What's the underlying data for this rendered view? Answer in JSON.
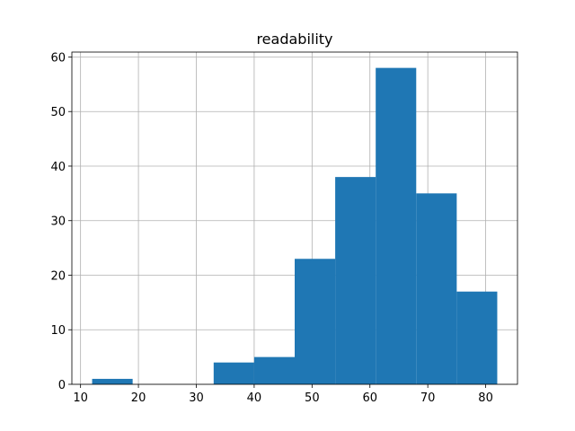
{
  "chart_data": {
    "type": "histogram",
    "title": "readability",
    "bins": [
      12,
      19,
      26,
      33,
      40,
      47,
      54,
      61,
      68,
      75,
      82
    ],
    "values": [
      1,
      0,
      0,
      4,
      5,
      23,
      38,
      58,
      35,
      17
    ],
    "color": "#1f77b4",
    "xlim": [
      8.5,
      85.5
    ],
    "xticks": [
      10,
      20,
      30,
      40,
      50,
      60,
      70,
      80
    ],
    "ylim": [
      0,
      60.9
    ],
    "yticks": [
      0,
      10,
      20,
      30,
      40,
      50,
      60
    ],
    "grid": true
  }
}
